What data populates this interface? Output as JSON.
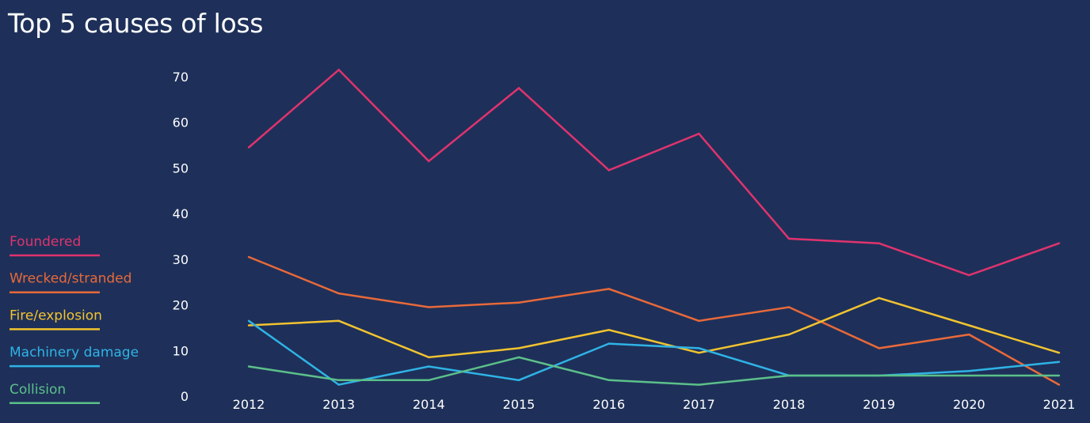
{
  "chart_data": {
    "type": "line",
    "title": "Top 5 causes of loss",
    "xlabel": "",
    "ylabel": "",
    "x": [
      "2012",
      "2013",
      "2014",
      "2015",
      "2016",
      "2017",
      "2018",
      "2019",
      "2020",
      "2021"
    ],
    "ylim": [
      0,
      70
    ],
    "yticks": [
      0,
      10,
      20,
      30,
      40,
      50,
      60,
      70
    ],
    "grid": false,
    "legend_position": "left",
    "series": [
      {
        "name": "Foundered",
        "color": "#e0336e",
        "values": [
          54.5,
          71.5,
          51.5,
          67.5,
          49.5,
          57.5,
          34.5,
          33.5,
          26.5,
          33.5
        ]
      },
      {
        "name": "Wrecked/stranded",
        "color": "#e8693a",
        "values": [
          30.5,
          22.5,
          19.5,
          20.5,
          23.5,
          16.5,
          19.5,
          10.5,
          13.5,
          2.5
        ]
      },
      {
        "name": "Fire/explosion",
        "color": "#f2c330",
        "values": [
          15.5,
          16.5,
          8.5,
          10.5,
          14.5,
          9.5,
          13.5,
          21.5,
          15.5,
          9.5
        ]
      },
      {
        "name": "Machinery damage",
        "color": "#2fb3e6",
        "values": [
          16.5,
          2.5,
          6.5,
          3.5,
          11.5,
          10.5,
          4.5,
          4.5,
          5.5,
          7.5
        ]
      },
      {
        "name": "Collision",
        "color": "#5cc08a",
        "values": [
          6.5,
          3.5,
          3.5,
          8.5,
          3.5,
          2.5,
          4.5,
          4.5,
          4.5,
          4.5
        ]
      }
    ]
  }
}
